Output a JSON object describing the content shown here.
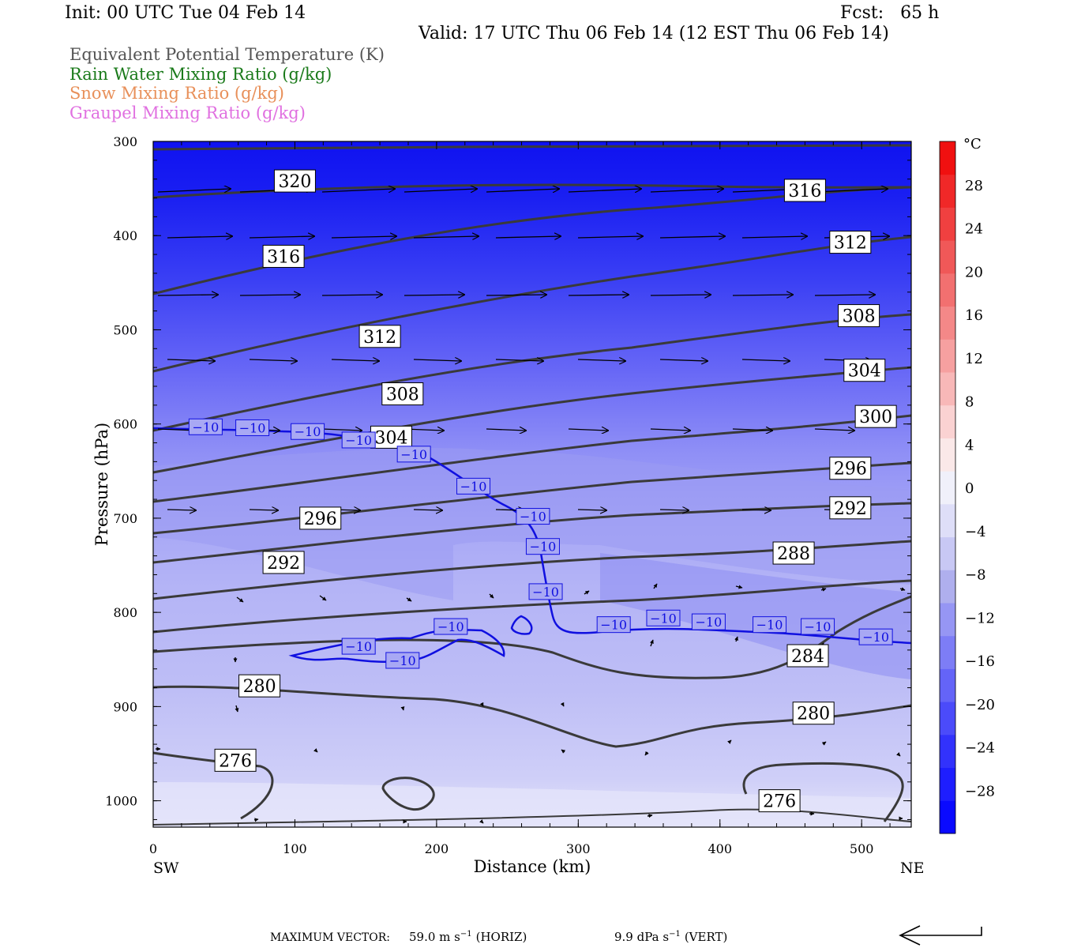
{
  "header": {
    "init": "Init: 00 UTC Tue 04 Feb 14",
    "fcst": "Fcst:   65 h",
    "valid": "Valid: 17 UTC Thu 06 Feb 14 (12 EST Thu 06 Feb 14)"
  },
  "legend": [
    {
      "label": "Equivalent Potential Temperature (K)",
      "color": "#555555"
    },
    {
      "label": "Rain Water Mixing Ratio (g/kg)",
      "color": "#1a7a1a"
    },
    {
      "label": "Snow Mixing Ratio (g/kg)",
      "color": "#e8905a"
    },
    {
      "label": "Graupel Mixing Ratio (g/kg)",
      "color": "#e070e0"
    }
  ],
  "chart_data": {
    "type": "contour",
    "xlabel": "Distance (km)",
    "ylabel": "Pressure (hPa)",
    "x_ticks": [
      0,
      100,
      200,
      300,
      400,
      500
    ],
    "y_ticks": [
      300,
      400,
      500,
      600,
      700,
      800,
      900,
      1000
    ],
    "xlim": [
      0,
      535
    ],
    "ylim": [
      1028,
      300
    ],
    "x_end_labels": {
      "left": "SW",
      "right": "NE"
    },
    "colorbar": {
      "unit": "°C",
      "ticks": [
        28,
        24,
        20,
        16,
        12,
        8,
        4,
        0,
        -4,
        -8,
        -12,
        -16,
        -20,
        -24,
        -28
      ],
      "tick_labels": [
        "28",
        "24",
        "20",
        "16",
        "12",
        "8",
        "4",
        "0",
        "−4",
        "−8",
        "−12",
        "−16",
        "−20",
        "−24",
        "−28"
      ],
      "colors": [
        "#0a0aff",
        "#1e1eff",
        "#3232fc",
        "#4b4bfa",
        "#6464f8",
        "#7d7df6",
        "#9696f4",
        "#afafee",
        "#c8c8f4",
        "#dedef8",
        "#f0f0fa",
        "#fae8e8",
        "#fad2d2",
        "#f8b8b8",
        "#f6a0a0",
        "#f48888",
        "#f27070",
        "#f05858",
        "#f04040",
        "#f02828",
        "#f01010"
      ]
    },
    "theta_e_labels": [
      {
        "text": "320",
        "x": 100,
        "p": 342
      },
      {
        "text": "316",
        "x": 460,
        "p": 352
      },
      {
        "text": "316",
        "x": 92,
        "p": 422
      },
      {
        "text": "312",
        "x": 492,
        "p": 407
      },
      {
        "text": "312",
        "x": 160,
        "p": 507
      },
      {
        "text": "308",
        "x": 498,
        "p": 485
      },
      {
        "text": "308",
        "x": 176,
        "p": 568
      },
      {
        "text": "304",
        "x": 502,
        "p": 543
      },
      {
        "text": "304",
        "x": 168,
        "p": 614
      },
      {
        "text": "300",
        "x": 510,
        "p": 592
      },
      {
        "text": "296",
        "x": 492,
        "p": 647
      },
      {
        "text": "292",
        "x": 492,
        "p": 689
      },
      {
        "text": "296",
        "x": 118,
        "p": 700
      },
      {
        "text": "288",
        "x": 452,
        "p": 737
      },
      {
        "text": "292",
        "x": 92,
        "p": 747
      },
      {
        "text": "284",
        "x": 462,
        "p": 846
      },
      {
        "text": "280",
        "x": 75,
        "p": 878
      },
      {
        "text": "280",
        "x": 466,
        "p": 907
      },
      {
        "text": "276",
        "x": 58,
        "p": 957
      },
      {
        "text": "276",
        "x": 442,
        "p": 1000
      }
    ],
    "isotherm_labels": [
      {
        "text": "−10",
        "x": 37,
        "p": 603
      },
      {
        "text": "−10",
        "x": 70,
        "p": 604
      },
      {
        "text": "−10",
        "x": 109,
        "p": 608
      },
      {
        "text": "−10",
        "x": 145,
        "p": 617
      },
      {
        "text": "−10",
        "x": 184,
        "p": 632
      },
      {
        "text": "−10",
        "x": 226,
        "p": 666
      },
      {
        "text": "−10",
        "x": 268,
        "p": 698
      },
      {
        "text": "−10",
        "x": 275,
        "p": 730
      },
      {
        "text": "−10",
        "x": 277,
        "p": 778
      },
      {
        "text": "−10",
        "x": 210,
        "p": 815
      },
      {
        "text": "−10",
        "x": 145,
        "p": 836
      },
      {
        "text": "−10",
        "x": 176,
        "p": 851
      },
      {
        "text": "−10",
        "x": 325,
        "p": 813
      },
      {
        "text": "−10",
        "x": 360,
        "p": 806
      },
      {
        "text": "−10",
        "x": 392,
        "p": 810
      },
      {
        "text": "−10",
        "x": 435,
        "p": 813
      },
      {
        "text": "−10",
        "x": 469,
        "p": 815
      },
      {
        "text": "−10",
        "x": 510,
        "p": 826
      }
    ]
  },
  "footer": {
    "max_vector_label": "MAXIMUM VECTOR:",
    "horiz_value": "59.0 m s",
    "horiz_exp": "−1",
    "horiz_suffix": "(HORIZ)",
    "vert_value": "9.9 dPa s",
    "vert_exp": "−1",
    "vert_suffix": "(VERT)"
  }
}
